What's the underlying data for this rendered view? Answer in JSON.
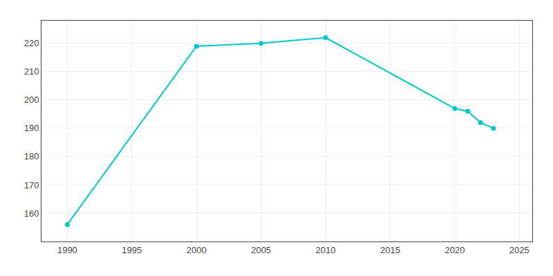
{
  "chart_data": {
    "type": "line",
    "x": [
      1990,
      2000,
      2005,
      2010,
      2020,
      2021,
      2022,
      2023
    ],
    "values": [
      156,
      219,
      220,
      222,
      197,
      196,
      192,
      190
    ],
    "color": "#00C8C8",
    "marker": "circle",
    "xlim": [
      1988,
      2026
    ],
    "ylim": [
      150,
      228
    ],
    "xticks": [
      1990,
      1995,
      2000,
      2005,
      2010,
      2015,
      2020,
      2025
    ],
    "yticks": [
      160,
      170,
      180,
      190,
      200,
      210,
      220
    ],
    "grid": true
  }
}
